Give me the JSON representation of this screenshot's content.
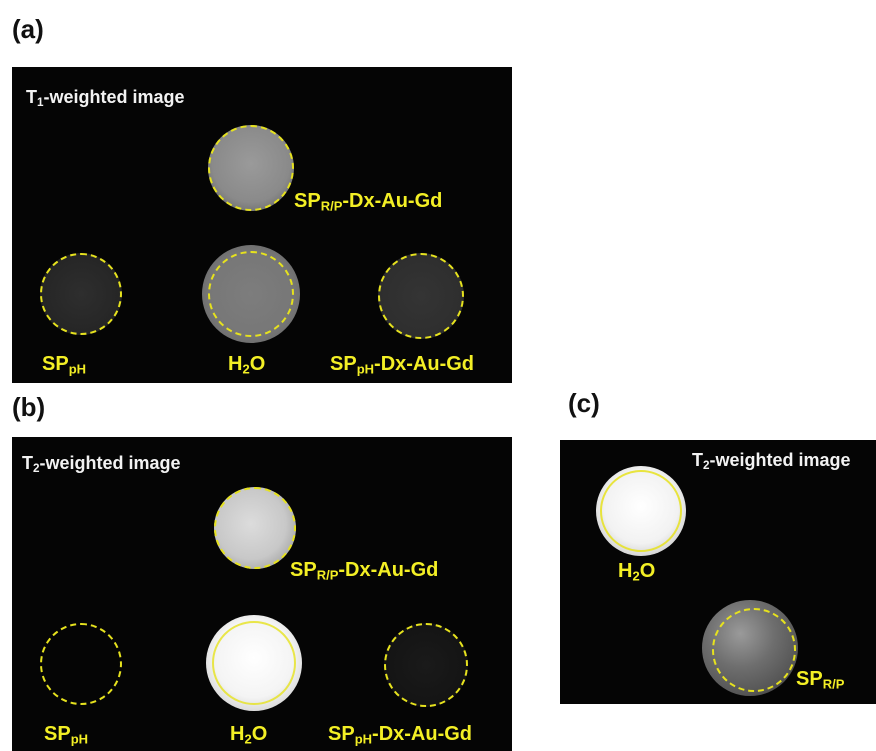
{
  "figure": {
    "panel_a_label": "(a)",
    "panel_b_label": "(b)",
    "panel_c_label": "(c)"
  },
  "panel_a": {
    "title_main": "T",
    "title_sub": "1",
    "title_rest": "-weighted image",
    "samples": [
      {
        "main": "SP",
        "sub": "R/P",
        "rest": "-Dx-Au-Gd"
      },
      {
        "main": "SP",
        "sub": "pH",
        "rest": ""
      },
      {
        "main": "H",
        "sub": "2",
        "rest": "O"
      },
      {
        "main": "SP",
        "sub": "pH",
        "rest": "-Dx-Au-Gd"
      }
    ]
  },
  "panel_b": {
    "title_main": "T",
    "title_sub": "2",
    "title_rest": "-weighted image",
    "samples": [
      {
        "main": "SP",
        "sub": "R/P",
        "rest": "-Dx-Au-Gd"
      },
      {
        "main": "SP",
        "sub": "pH",
        "rest": ""
      },
      {
        "main": "H",
        "sub": "2",
        "rest": "O"
      },
      {
        "main": "SP",
        "sub": "pH",
        "rest": "-Dx-Au-Gd"
      }
    ]
  },
  "panel_c": {
    "title_main": "T",
    "title_sub": "2",
    "title_rest": "-weighted image",
    "samples": [
      {
        "main": "H",
        "sub": "2",
        "rest": "O"
      },
      {
        "main": "SP",
        "sub": "R/P",
        "rest": ""
      }
    ]
  },
  "colors": {
    "background": "#050505",
    "annotation": "#f3ef25",
    "title_text": "#f2f2f2"
  }
}
